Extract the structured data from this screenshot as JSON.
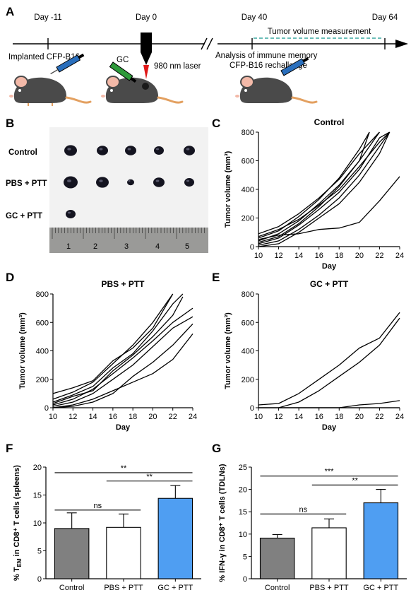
{
  "panel_letters": [
    "A",
    "B",
    "C",
    "D",
    "E",
    "F",
    "G"
  ],
  "timeline": {
    "day_labels": [
      "Day -11",
      "Day 0",
      "Day 40",
      "Day 64"
    ],
    "implant_text": "Implanted CFP-B16",
    "gc_text": "GC",
    "laser_text": "980 nm laser",
    "measure_text": "Tumor volume measurement",
    "memory_text_1": "Analysis of immune memory",
    "memory_text_2": "CFP-B16 rechallenge",
    "colors": {
      "syringe_blue": "#2a6fbd",
      "syringe_green": "#2e9a3a",
      "laser_red": "#e01818",
      "mouse_body": "#4a4a4a",
      "tail": "#e3a060",
      "dashed_line": "#3aa8a0"
    }
  },
  "photo": {
    "row_labels": [
      "Control",
      "PBS + PTT",
      "GC + PTT"
    ],
    "tumor_counts": [
      5,
      5,
      1
    ],
    "ruler_numbers": [
      "1",
      "2",
      "3",
      "4",
      "5"
    ]
  },
  "chart_data": [
    {
      "id": "C",
      "type": "line",
      "title": "Control",
      "xlabel": "Day",
      "ylabel": "Tumor volume (mm³)",
      "xlim": [
        10,
        24
      ],
      "ylim": [
        0,
        800
      ],
      "xticks": [
        10,
        12,
        14,
        16,
        18,
        20,
        22,
        24
      ],
      "yticks": [
        0,
        200,
        400,
        600,
        800
      ],
      "series": [
        {
          "values": [
            [
              10,
              30
            ],
            [
              12,
              70
            ],
            [
              14,
              160
            ],
            [
              16,
              280
            ],
            [
              18,
              420
            ],
            [
              20,
              600
            ],
            [
              21,
              800
            ]
          ]
        },
        {
          "values": [
            [
              10,
              60
            ],
            [
              12,
              110
            ],
            [
              14,
              210
            ],
            [
              16,
              330
            ],
            [
              18,
              480
            ],
            [
              20,
              680
            ],
            [
              21,
              800
            ]
          ]
        },
        {
          "values": [
            [
              10,
              90
            ],
            [
              12,
              140
            ],
            [
              14,
              230
            ],
            [
              16,
              340
            ],
            [
              18,
              470
            ],
            [
              20,
              650
            ],
            [
              22,
              800
            ]
          ]
        },
        {
          "values": [
            [
              10,
              20
            ],
            [
              12,
              60
            ],
            [
              14,
              150
            ],
            [
              16,
              260
            ],
            [
              18,
              380
            ],
            [
              20,
              540
            ],
            [
              22,
              760
            ],
            [
              23,
              800
            ]
          ]
        },
        {
          "values": [
            [
              10,
              40
            ],
            [
              12,
              90
            ],
            [
              14,
              180
            ],
            [
              16,
              300
            ],
            [
              18,
              430
            ],
            [
              20,
              600
            ],
            [
              22,
              800
            ]
          ]
        },
        {
          "values": [
            [
              10,
              10
            ],
            [
              12,
              40
            ],
            [
              14,
              120
            ],
            [
              16,
              220
            ],
            [
              18,
              340
            ],
            [
              20,
              500
            ],
            [
              22,
              700
            ],
            [
              23,
              800
            ]
          ]
        },
        {
          "values": [
            [
              10,
              70
            ],
            [
              12,
              120
            ],
            [
              14,
              190
            ],
            [
              16,
              290
            ],
            [
              18,
              400
            ],
            [
              20,
              560
            ],
            [
              22,
              730
            ],
            [
              23,
              800
            ]
          ]
        },
        {
          "values": [
            [
              10,
              0
            ],
            [
              12,
              20
            ],
            [
              14,
              100
            ],
            [
              16,
              200
            ],
            [
              18,
              300
            ],
            [
              20,
              450
            ],
            [
              22,
              650
            ],
            [
              23,
              800
            ]
          ]
        },
        {
          "values": [
            [
              10,
              50
            ],
            [
              12,
              80
            ],
            [
              14,
              90
            ],
            [
              16,
              120
            ],
            [
              18,
              130
            ],
            [
              20,
              170
            ],
            [
              22,
              320
            ],
            [
              24,
              490
            ]
          ]
        }
      ]
    },
    {
      "id": "D",
      "type": "line",
      "title": "PBS + PTT",
      "xlabel": "Day",
      "ylabel": "Tumor volume (mm³)",
      "xlim": [
        10,
        24
      ],
      "ylim": [
        0,
        800
      ],
      "xticks": [
        10,
        12,
        14,
        16,
        18,
        20,
        22,
        24
      ],
      "yticks": [
        0,
        200,
        400,
        600,
        800
      ],
      "series": [
        {
          "values": [
            [
              10,
              100
            ],
            [
              12,
              140
            ],
            [
              14,
              190
            ],
            [
              16,
              330
            ],
            [
              18,
              420
            ],
            [
              20,
              560
            ],
            [
              22,
              800
            ]
          ]
        },
        {
          "values": [
            [
              10,
              60
            ],
            [
              12,
              110
            ],
            [
              14,
              180
            ],
            [
              16,
              310
            ],
            [
              18,
              440
            ],
            [
              20,
              600
            ],
            [
              22,
              800
            ]
          ]
        },
        {
          "values": [
            [
              10,
              40
            ],
            [
              12,
              90
            ],
            [
              14,
              150
            ],
            [
              16,
              280
            ],
            [
              18,
              380
            ],
            [
              20,
              540
            ],
            [
              22,
              730
            ],
            [
              23,
              800
            ]
          ]
        },
        {
          "values": [
            [
              10,
              30
            ],
            [
              12,
              80
            ],
            [
              14,
              120
            ],
            [
              16,
              260
            ],
            [
              18,
              370
            ],
            [
              20,
              500
            ],
            [
              22,
              650
            ],
            [
              23,
              780
            ]
          ]
        },
        {
          "values": [
            [
              10,
              20
            ],
            [
              12,
              60
            ],
            [
              14,
              130
            ],
            [
              16,
              240
            ],
            [
              18,
              350
            ],
            [
              20,
              470
            ],
            [
              22,
              600
            ],
            [
              24,
              700
            ]
          ]
        },
        {
          "values": [
            [
              10,
              10
            ],
            [
              12,
              40
            ],
            [
              14,
              100
            ],
            [
              16,
              200
            ],
            [
              18,
              300
            ],
            [
              20,
              430
            ],
            [
              22,
              560
            ],
            [
              24,
              640
            ]
          ]
        },
        {
          "values": [
            [
              10,
              0
            ],
            [
              12,
              20
            ],
            [
              14,
              60
            ],
            [
              16,
              120
            ],
            [
              18,
              180
            ],
            [
              20,
              240
            ],
            [
              22,
              340
            ],
            [
              24,
              520
            ]
          ]
        },
        {
          "values": [
            [
              10,
              0
            ],
            [
              12,
              10
            ],
            [
              14,
              40
            ],
            [
              16,
              100
            ],
            [
              18,
              220
            ],
            [
              20,
              320
            ],
            [
              22,
              440
            ],
            [
              24,
              590
            ]
          ]
        }
      ]
    },
    {
      "id": "E",
      "type": "line",
      "title": "GC + PTT",
      "xlabel": "Day",
      "ylabel": "Tumor volume (mm³)",
      "xlim": [
        10,
        24
      ],
      "ylim": [
        0,
        800
      ],
      "xticks": [
        10,
        12,
        14,
        16,
        18,
        20,
        22,
        24
      ],
      "yticks": [
        0,
        200,
        400,
        600,
        800
      ],
      "series": [
        {
          "values": [
            [
              10,
              20
            ],
            [
              12,
              30
            ],
            [
              14,
              100
            ],
            [
              16,
              200
            ],
            [
              18,
              300
            ],
            [
              20,
              420
            ],
            [
              22,
              490
            ],
            [
              24,
              670
            ]
          ]
        },
        {
          "values": [
            [
              12,
              0
            ],
            [
              14,
              40
            ],
            [
              16,
              120
            ],
            [
              18,
              220
            ],
            [
              20,
              320
            ],
            [
              22,
              440
            ],
            [
              24,
              630
            ]
          ]
        },
        {
          "values": [
            [
              10,
              0
            ],
            [
              12,
              0
            ],
            [
              14,
              0
            ],
            [
              16,
              0
            ],
            [
              18,
              0
            ],
            [
              20,
              20
            ],
            [
              22,
              30
            ],
            [
              24,
              50
            ]
          ]
        },
        {
          "values": [
            [
              10,
              0
            ],
            [
              12,
              0
            ],
            [
              14,
              0
            ],
            [
              16,
              0
            ],
            [
              18,
              0
            ],
            [
              20,
              0
            ],
            [
              22,
              0
            ],
            [
              24,
              0
            ]
          ]
        }
      ]
    },
    {
      "id": "F",
      "type": "bar",
      "categories": [
        "Control",
        "PBS + PTT",
        "GC + PTT"
      ],
      "values": [
        9.0,
        9.2,
        14.4
      ],
      "errors": [
        2.8,
        2.4,
        2.3
      ],
      "colors": [
        "#808080",
        "#ffffff",
        "#4f9ef2"
      ],
      "ylabel": "% T_EM in CD8⁺ T cells (spleens)",
      "ylim": [
        0,
        20
      ],
      "yticks": [
        0,
        5,
        10,
        15,
        20
      ],
      "significance": [
        {
          "text": "**",
          "from": 0,
          "to": 2,
          "y": 19.0
        },
        {
          "text": "**",
          "from": 1,
          "to": 2,
          "y": 17.5
        },
        {
          "text": "ns",
          "from": 0,
          "to": 1,
          "y": 12.3
        }
      ]
    },
    {
      "id": "G",
      "type": "bar",
      "categories": [
        "Control",
        "PBS + PTT",
        "GC + PTT"
      ],
      "values": [
        9.1,
        11.4,
        17.0
      ],
      "errors": [
        0.8,
        2.0,
        3.0
      ],
      "colors": [
        "#808080",
        "#ffffff",
        "#4f9ef2"
      ],
      "ylabel": "% IFN-γ in CD8⁺ T cells (TDLNs)",
      "ylim": [
        0,
        25
      ],
      "yticks": [
        0,
        5,
        10,
        15,
        20,
        25
      ],
      "significance": [
        {
          "text": "***",
          "from": 0,
          "to": 2,
          "y": 23.0
        },
        {
          "text": "**",
          "from": 1,
          "to": 2,
          "y": 21.0
        },
        {
          "text": "ns",
          "from": 0,
          "to": 1,
          "y": 14.5
        }
      ]
    }
  ]
}
